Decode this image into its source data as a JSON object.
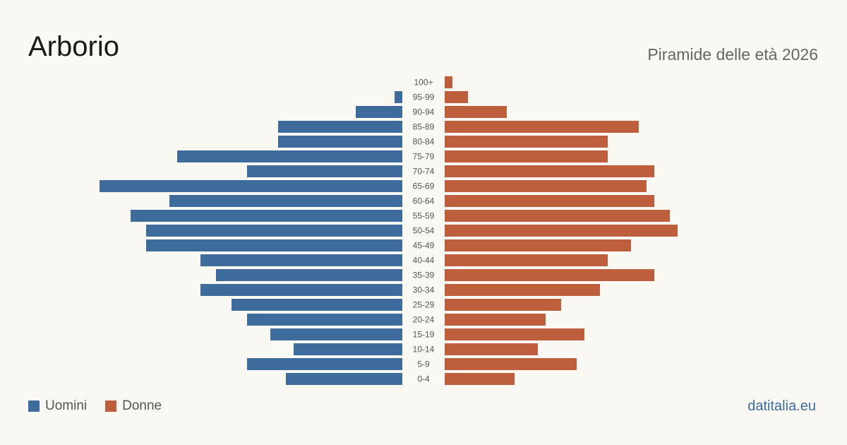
{
  "header": {
    "title": "Arborio",
    "subtitle": "Piramide delle età 2026"
  },
  "legend": {
    "men_label": "Uomini",
    "women_label": "Donne"
  },
  "brand": "datitalia.eu",
  "colors": {
    "men": "#3d6b9c",
    "women": "#bd5f3d",
    "background": "#faf8f3"
  },
  "chart_data": {
    "type": "bar",
    "orientation": "horizontal-pyramid",
    "title": "Piramide delle età 2026",
    "categories": [
      "100+",
      "95-99",
      "90-94",
      "85-89",
      "80-84",
      "75-79",
      "70-74",
      "65-69",
      "60-64",
      "55-59",
      "50-54",
      "45-49",
      "40-44",
      "35-39",
      "30-34",
      "25-29",
      "20-24",
      "15-19",
      "10-14",
      "5-9",
      "0-4"
    ],
    "series": [
      {
        "name": "Uomini",
        "values": [
          0,
          1,
          6,
          16,
          16,
          29,
          20,
          39,
          30,
          35,
          33,
          33,
          26,
          24,
          26,
          22,
          20,
          17,
          14,
          20,
          15
        ]
      },
      {
        "name": "Donne",
        "values": [
          1,
          3,
          8,
          25,
          21,
          21,
          27,
          26,
          27,
          29,
          30,
          24,
          21,
          27,
          20,
          15,
          13,
          18,
          12,
          17,
          9
        ]
      }
    ],
    "legend_position": "bottom-left",
    "grid": false
  }
}
